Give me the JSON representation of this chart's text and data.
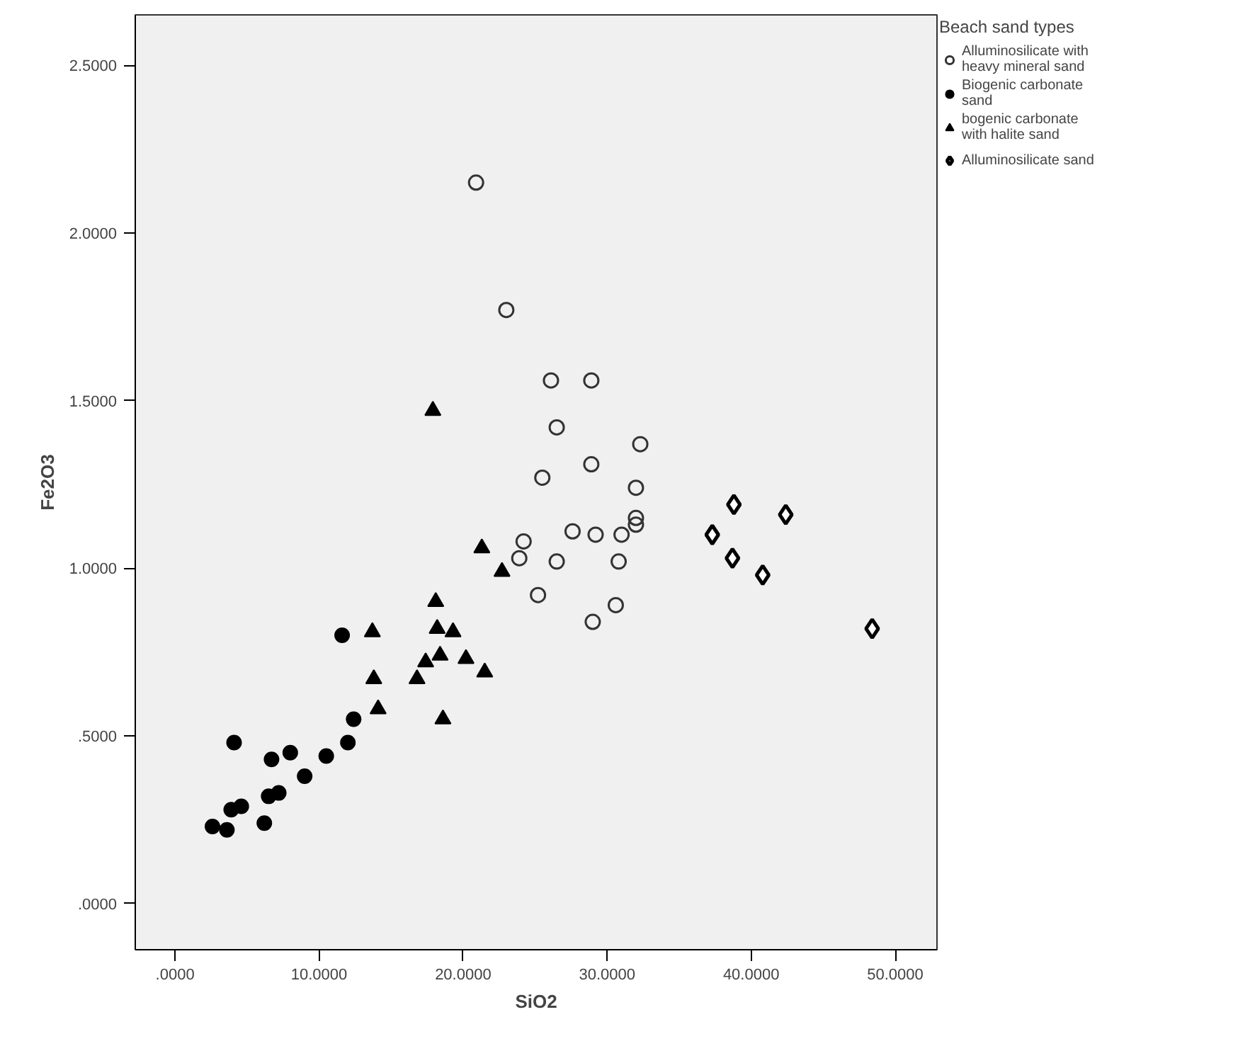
{
  "chart_data": {
    "type": "scatter",
    "xlabel": "SiO2",
    "ylabel": "Fe2O3",
    "legend_title": "Beach sand types",
    "legend": "top right",
    "grid": false,
    "xlim": [
      -2.76,
      52.9
    ],
    "ylim": [
      -0.1375,
      2.65
    ],
    "xticks": [
      {
        "value": 0,
        "label": ".0000"
      },
      {
        "value": 10,
        "label": "10.0000"
      },
      {
        "value": 20,
        "label": "20.0000"
      },
      {
        "value": 30,
        "label": "30.0000"
      },
      {
        "value": 40,
        "label": "40.0000"
      },
      {
        "value": 50,
        "label": "50.0000"
      }
    ],
    "yticks": [
      {
        "value": 0,
        "label": ".0000"
      },
      {
        "value": 0.5,
        "label": ".5000"
      },
      {
        "value": 1,
        "label": "1.0000"
      },
      {
        "value": 1.5,
        "label": "1.5000"
      },
      {
        "value": 2,
        "label": "2.0000"
      },
      {
        "value": 2.5,
        "label": "2.5000"
      }
    ],
    "series": [
      {
        "name": "Alluminosilicate with heavy mineral sand",
        "color": "#333333",
        "marker": "circle_open",
        "x": [
          20.9,
          23.0,
          26.1,
          28.9,
          26.5,
          32.3,
          25.5,
          28.9,
          32.0,
          32.0,
          32.0,
          27.6,
          29.2,
          31.0,
          24.2,
          23.9,
          26.5,
          30.8,
          25.2,
          30.6,
          29.0
        ],
        "values": [
          2.15,
          1.77,
          1.56,
          1.56,
          1.42,
          1.37,
          1.27,
          1.31,
          1.24,
          1.15,
          1.13,
          1.11,
          1.1,
          1.1,
          1.08,
          1.03,
          1.02,
          1.02,
          0.92,
          0.89,
          0.84
        ]
      },
      {
        "name": "Biogenic carbonate sand",
        "color": "#000000",
        "marker": "circle",
        "x": [
          11.6,
          4.1,
          6.7,
          8.0,
          10.5,
          12.0,
          12.4,
          9.0,
          6.5,
          7.2,
          3.9,
          4.6,
          2.6,
          3.6,
          6.2
        ],
        "values": [
          0.8,
          0.48,
          0.43,
          0.45,
          0.44,
          0.48,
          0.55,
          0.38,
          0.32,
          0.33,
          0.28,
          0.29,
          0.23,
          0.22,
          0.24
        ]
      },
      {
        "name": "bogenic carbonate with halite sand",
        "color": "#000000",
        "marker": "triangle",
        "x": [
          13.7,
          13.8,
          14.1,
          18.1,
          18.2,
          19.3,
          18.4,
          17.4,
          16.8,
          20.2,
          21.5,
          18.6,
          21.3,
          22.7,
          17.9
        ],
        "values": [
          0.81,
          0.67,
          0.58,
          0.9,
          0.82,
          0.81,
          0.74,
          0.72,
          0.67,
          0.73,
          0.69,
          0.55,
          1.06,
          0.99,
          1.47
        ]
      },
      {
        "name": "Alluminosilicate sand",
        "color": "#000000",
        "marker": "diamond_open",
        "x": [
          38.8,
          42.4,
          37.3,
          38.7,
          40.8,
          48.4
        ],
        "values": [
          1.19,
          1.16,
          1.1,
          1.03,
          0.98,
          0.82
        ]
      }
    ]
  }
}
